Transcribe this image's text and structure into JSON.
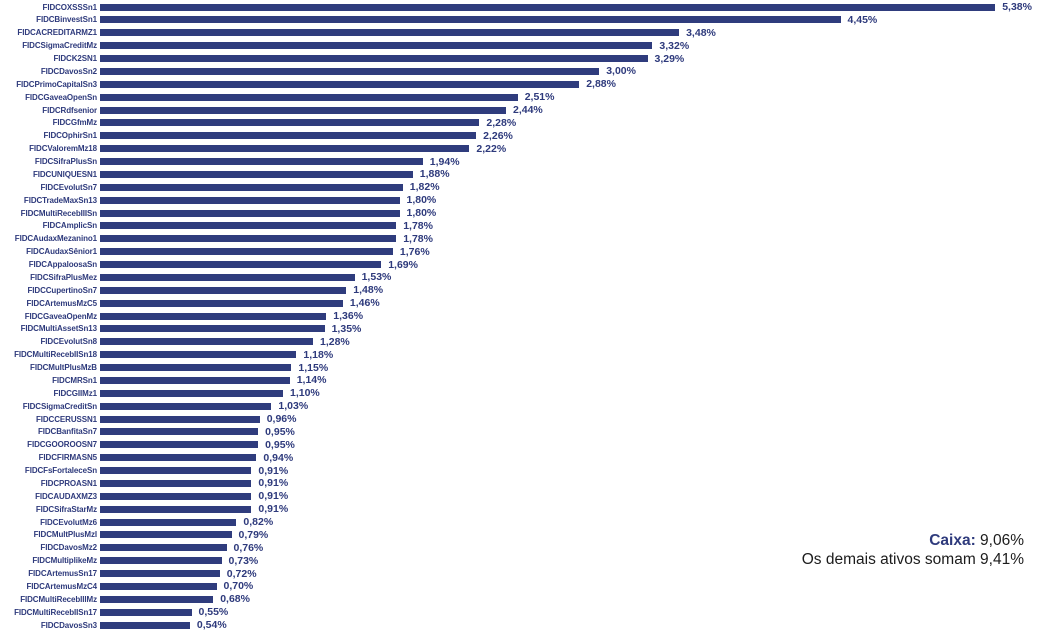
{
  "chart_data": {
    "type": "bar",
    "orientation": "horizontal",
    "title": "",
    "xlabel": "",
    "ylabel": "",
    "unit": "%",
    "decimal_separator": ",",
    "grid": false,
    "legend": false,
    "xlim": [
      0,
      5.68
    ],
    "bar_color": "#2f3c7d",
    "categories": [
      "FIDCOXSSSn1",
      "FIDCBinvestSn1",
      "FIDCACREDITARMZ1",
      "FIDCSigmaCreditMz",
      "FIDCK2SN1",
      "FIDCDavosSn2",
      "FIDCPrimoCapitalSn3",
      "FIDCGaveaOpenSn",
      "FIDCRdfsenior",
      "FIDCGfmMz",
      "FIDCOphirSn1",
      "FIDCValoremMz18",
      "FIDCSifraPlusSn",
      "FIDCUNIQUESN1",
      "FIDCEvolutSn7",
      "FIDCTradeMaxSn13",
      "FIDCMultiRecebIIISn",
      "FIDCAmplicSn",
      "FIDCAudaxMezanino1",
      "FIDCAudaxSênior1",
      "FIDCAppaloosaSn",
      "FIDCSifraPlusMez",
      "FIDCCupertinoSn7",
      "FIDCArtemusMzC5",
      "FIDCGaveaOpenMz",
      "FIDCMultiAssetSn13",
      "FIDCEvolutSn8",
      "FIDCMultiRecebIISn18",
      "FIDCMultPlusMzB",
      "FIDCMRSn1",
      "FIDCGIIMz1",
      "FIDCSigmaCreditSn",
      "FIDCCERUSSN1",
      "FIDCBanfitaSn7",
      "FIDCGOOROOSN7",
      "FIDCFIRMASN5",
      "FIDCFsFortaleceSn",
      "FIDCPROASN1",
      "FIDCAUDAXMZ3",
      "FIDCSifraStarMz",
      "FIDCEvolutMz6",
      "FIDCMultPlusMzI",
      "FIDCDavosMz2",
      "FIDCMultiplikeMz",
      "FIDCArtemusSn17",
      "FIDCArtemusMzC4",
      "FIDCMultiRecebIIIMz",
      "FIDCMultiRecebIISn17",
      "FIDCDavosSn3"
    ],
    "values": [
      5.38,
      4.45,
      3.48,
      3.32,
      3.29,
      3.0,
      2.88,
      2.51,
      2.44,
      2.28,
      2.26,
      2.22,
      1.94,
      1.88,
      1.82,
      1.8,
      1.8,
      1.78,
      1.78,
      1.76,
      1.69,
      1.53,
      1.48,
      1.46,
      1.36,
      1.35,
      1.28,
      1.18,
      1.15,
      1.14,
      1.1,
      1.03,
      0.96,
      0.95,
      0.95,
      0.94,
      0.91,
      0.91,
      0.91,
      0.91,
      0.82,
      0.79,
      0.76,
      0.73,
      0.72,
      0.7,
      0.68,
      0.55,
      0.54
    ],
    "value_labels": [
      "5,38%",
      "4,45%",
      "3,48%",
      "3,32%",
      "3,29%",
      "3,00%",
      "2,88%",
      "2,51%",
      "2,44%",
      "2,28%",
      "2,26%",
      "2,22%",
      "1,94%",
      "1,88%",
      "1,82%",
      "1,80%",
      "1,80%",
      "1,78%",
      "1,78%",
      "1,76%",
      "1,69%",
      "1,53%",
      "1,48%",
      "1,46%",
      "1,36%",
      "1,35%",
      "1,28%",
      "1,18%",
      "1,15%",
      "1,14%",
      "1,10%",
      "1,03%",
      "0,96%",
      "0,95%",
      "0,95%",
      "0,94%",
      "0,91%",
      "0,91%",
      "0,91%",
      "0,91%",
      "0,82%",
      "0,79%",
      "0,76%",
      "0,73%",
      "0,72%",
      "0,70%",
      "0,68%",
      "0,55%",
      "0,54%"
    ]
  },
  "annotations": {
    "caixa_label": "Caixa:",
    "caixa_value": "9,06%",
    "others_text": "Os demais ativos somam 9,41%"
  },
  "colors": {
    "bar": "#2f3c7d",
    "label_text": "#2e3a7c",
    "annotation_text": "#1c1c1c"
  }
}
